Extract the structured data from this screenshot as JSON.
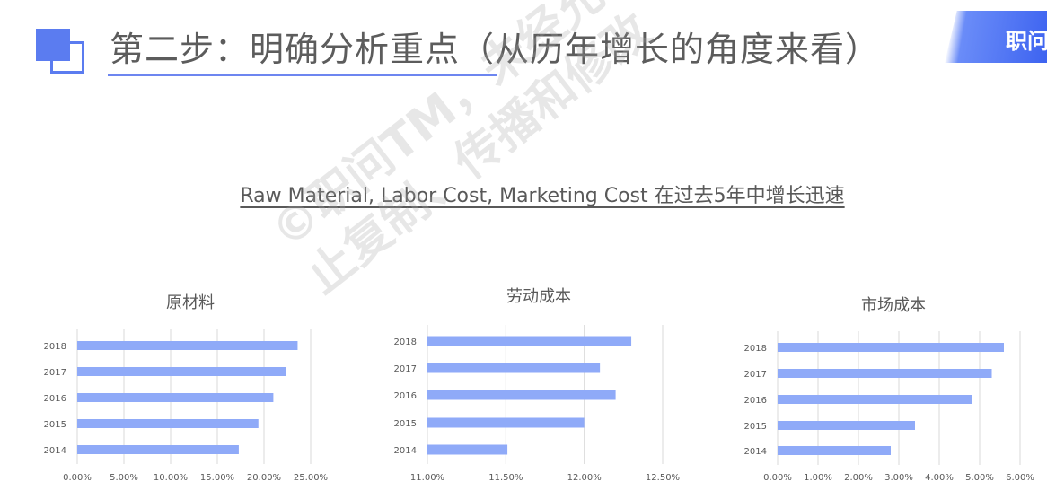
{
  "header": {
    "title": "第二步：明确分析重点（从历年增长的角度来看）",
    "badge": "职问"
  },
  "subtitle": "Raw Material, Labor Cost, Marketing Cost 在过去5年中增长迅速",
  "watermark": [
    "©职问TM，未经允许禁",
    "止复制、传播和修改"
  ],
  "colors": {
    "bar": "#8faaf8",
    "accent": "#5b7cf0",
    "grid": "#d9d9d9"
  },
  "chart_data": [
    {
      "type": "bar",
      "orientation": "horizontal",
      "title": "原材料",
      "categories": [
        "2018",
        "2017",
        "2016",
        "2015",
        "2014"
      ],
      "values": [
        0.236,
        0.224,
        0.21,
        0.194,
        0.173
      ],
      "xlim": [
        0,
        0.25
      ],
      "xticks": [
        "0.00%",
        "5.00%",
        "10.00%",
        "15.00%",
        "20.00%",
        "25.00%"
      ]
    },
    {
      "type": "bar",
      "orientation": "horizontal",
      "title": "劳动成本",
      "categories": [
        "2018",
        "2017",
        "2016",
        "2015",
        "2014"
      ],
      "values": [
        0.123,
        0.121,
        0.122,
        0.12,
        0.1151
      ],
      "xlim": [
        0.11,
        0.125
      ],
      "xticks": [
        "11.00%",
        "11.50%",
        "12.00%",
        "12.50%"
      ]
    },
    {
      "type": "bar",
      "orientation": "horizontal",
      "title": "市场成本",
      "categories": [
        "2018",
        "2017",
        "2016",
        "2015",
        "2014"
      ],
      "values": [
        0.056,
        0.053,
        0.048,
        0.034,
        0.028
      ],
      "xlim": [
        0,
        0.06
      ],
      "xticks": [
        "0.00%",
        "1.00%",
        "2.00%",
        "3.00%",
        "4.00%",
        "5.00%",
        "6.00%"
      ]
    }
  ]
}
